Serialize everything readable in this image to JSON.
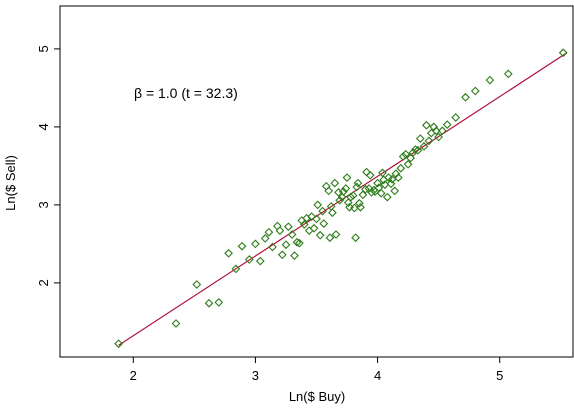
{
  "chart_data": {
    "type": "scatter",
    "title": "",
    "xlabel": "Ln($ Buy)",
    "ylabel": "Ln($ Sell)",
    "xlim": [
      1.4,
      5.6
    ],
    "ylim": [
      1.05,
      5.55
    ],
    "xticks": [
      2,
      3,
      4,
      5
    ],
    "yticks": [
      2,
      3,
      4,
      5
    ],
    "xtick_labels": [
      "2",
      "3",
      "4",
      "5"
    ],
    "ytick_labels": [
      "2",
      "3",
      "4",
      "5"
    ],
    "grid": false,
    "marker": "hollow-diamond",
    "point_color": "#2e7d1a",
    "line_color": "#b0103a",
    "annotation": "β = 1.0 (t = 32.3)",
    "fit_line": {
      "x": [
        1.88,
        5.55
      ],
      "y": [
        1.2,
        4.95
      ]
    },
    "points": [
      [
        1.88,
        1.22
      ],
      [
        2.35,
        1.48
      ],
      [
        2.52,
        1.98
      ],
      [
        2.62,
        1.74
      ],
      [
        2.7,
        1.75
      ],
      [
        2.78,
        2.38
      ],
      [
        2.84,
        2.18
      ],
      [
        2.89,
        2.47
      ],
      [
        2.95,
        2.3
      ],
      [
        3.0,
        2.5
      ],
      [
        3.04,
        2.28
      ],
      [
        3.08,
        2.57
      ],
      [
        3.11,
        2.65
      ],
      [
        3.14,
        2.46
      ],
      [
        3.18,
        2.73
      ],
      [
        3.2,
        2.67
      ],
      [
        3.22,
        2.36
      ],
      [
        3.25,
        2.49
      ],
      [
        3.27,
        2.72
      ],
      [
        3.3,
        2.62
      ],
      [
        3.32,
        2.35
      ],
      [
        3.34,
        2.52
      ],
      [
        3.36,
        2.51
      ],
      [
        3.38,
        2.8
      ],
      [
        3.4,
        2.75
      ],
      [
        3.42,
        2.83
      ],
      [
        3.44,
        2.67
      ],
      [
        3.46,
        2.85
      ],
      [
        3.48,
        2.7
      ],
      [
        3.5,
        2.82
      ],
      [
        3.51,
        3.0
      ],
      [
        3.53,
        2.61
      ],
      [
        3.55,
        2.92
      ],
      [
        3.56,
        2.76
      ],
      [
        3.58,
        3.24
      ],
      [
        3.6,
        3.18
      ],
      [
        3.61,
        2.58
      ],
      [
        3.62,
        2.98
      ],
      [
        3.63,
        2.9
      ],
      [
        3.65,
        3.28
      ],
      [
        3.66,
        2.62
      ],
      [
        3.68,
        3.16
      ],
      [
        3.69,
        3.06
      ],
      [
        3.71,
        3.1
      ],
      [
        3.72,
        3.17
      ],
      [
        3.74,
        3.21
      ],
      [
        3.75,
        3.35
      ],
      [
        3.76,
        3.03
      ],
      [
        3.77,
        2.97
      ],
      [
        3.78,
        3.1
      ],
      [
        3.8,
        3.12
      ],
      [
        3.81,
        2.96
      ],
      [
        3.82,
        2.58
      ],
      [
        3.83,
        3.23
      ],
      [
        3.84,
        3.28
      ],
      [
        3.85,
        3.02
      ],
      [
        3.86,
        2.97
      ],
      [
        3.88,
        3.13
      ],
      [
        3.9,
        3.2
      ],
      [
        3.91,
        3.42
      ],
      [
        3.93,
        3.21
      ],
      [
        3.94,
        3.38
      ],
      [
        3.95,
        3.16
      ],
      [
        3.97,
        3.19
      ],
      [
        3.98,
        3.17
      ],
      [
        4.0,
        3.28
      ],
      [
        4.01,
        3.22
      ],
      [
        4.03,
        3.15
      ],
      [
        4.04,
        3.41
      ],
      [
        4.05,
        3.32
      ],
      [
        4.06,
        3.26
      ],
      [
        4.08,
        3.1
      ],
      [
        4.09,
        3.35
      ],
      [
        4.11,
        3.27
      ],
      [
        4.12,
        3.33
      ],
      [
        4.14,
        3.18
      ],
      [
        4.15,
        3.4
      ],
      [
        4.17,
        3.35
      ],
      [
        4.19,
        3.47
      ],
      [
        4.21,
        3.62
      ],
      [
        4.23,
        3.65
      ],
      [
        4.25,
        3.52
      ],
      [
        4.27,
        3.6
      ],
      [
        4.29,
        3.67
      ],
      [
        4.31,
        3.71
      ],
      [
        4.33,
        3.7
      ],
      [
        4.35,
        3.85
      ],
      [
        4.38,
        3.75
      ],
      [
        4.4,
        4.02
      ],
      [
        4.42,
        3.82
      ],
      [
        4.44,
        3.92
      ],
      [
        4.46,
        4.0
      ],
      [
        4.48,
        3.95
      ],
      [
        4.5,
        3.87
      ],
      [
        4.53,
        3.95
      ],
      [
        4.57,
        4.03
      ],
      [
        4.64,
        4.12
      ],
      [
        4.72,
        4.38
      ],
      [
        4.8,
        4.46
      ],
      [
        4.92,
        4.6
      ],
      [
        5.07,
        4.68
      ],
      [
        5.52,
        4.95
      ]
    ]
  }
}
